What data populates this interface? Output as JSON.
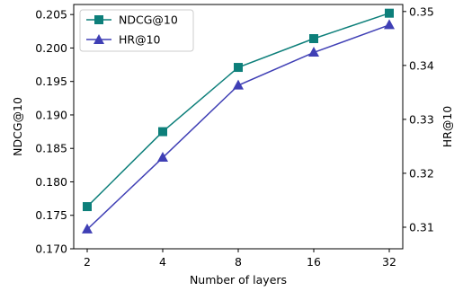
{
  "chart_data": {
    "type": "line",
    "x": [
      "2",
      "4",
      "8",
      "16",
      "32"
    ],
    "xlabel": "Number of layers",
    "y_left": {
      "label": "NDCG@10",
      "lim": [
        0.17,
        0.2065
      ],
      "ticks": [
        "0.170",
        "0.175",
        "0.180",
        "0.185",
        "0.190",
        "0.195",
        "0.200",
        "0.205"
      ]
    },
    "y_right": {
      "label": "HR@10",
      "lim": [
        0.306,
        0.3513
      ],
      "ticks": [
        "0.31",
        "0.32",
        "0.33",
        "0.34",
        "0.35"
      ]
    },
    "series": [
      {
        "name": "NDCG@10",
        "axis": "left",
        "color": "#0d7f7a",
        "marker": "square",
        "values": [
          0.1763,
          0.1875,
          0.1971,
          0.2014,
          0.2052
        ]
      },
      {
        "name": "HR@10",
        "axis": "right",
        "color": "#3f3fb5",
        "marker": "triangle",
        "values": [
          0.3096,
          0.3229,
          0.3363,
          0.3424,
          0.3475
        ]
      }
    ],
    "legend": "top-left",
    "grid": false
  }
}
